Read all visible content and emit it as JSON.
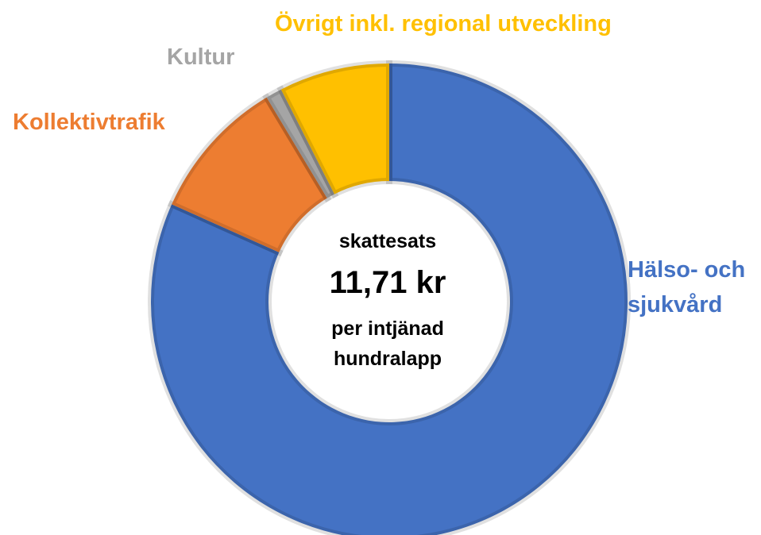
{
  "chart_data": {
    "type": "donut",
    "categories": [
      "Hälso- och sjukvård",
      "Kollektivtrafik",
      "Kultur",
      "Övrigt inkl. regional utveckling"
    ],
    "values": [
      81.7,
      9.7,
      1.1,
      7.5
    ],
    "colors": [
      "#4472c4",
      "#ed7d31",
      "#a5a5a5",
      "#ffc000"
    ],
    "label_colors": [
      "#4472c4",
      "#ed7d31",
      "#a5a5a5",
      "#ffc000"
    ],
    "center_text": [
      "skattesats",
      "11,71 kr",
      "per intjänad",
      "hundralapp"
    ]
  }
}
